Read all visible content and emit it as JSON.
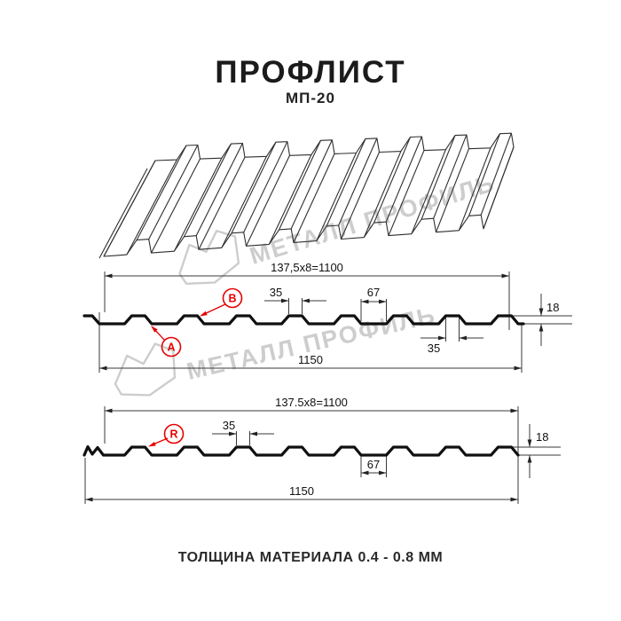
{
  "header": {
    "title": "ПРОФЛИСТ",
    "subtitle": "МП-20"
  },
  "footer": {
    "text": "ТОЛЩИНА МАТЕРИАЛА 0.4 - 0.8 ММ"
  },
  "watermark": {
    "text": "МЕТАЛЛ ПРОФИЛЬ",
    "logo": "metall-profil-roof-logo"
  },
  "colors": {
    "accent_red": "#e60000",
    "line_black": "#101010",
    "watermark_gray": "#cdcdcd"
  },
  "profile_top": {
    "dim_width_formula": "137,5x8=1100",
    "dim_total_width": "1150",
    "dim_rib_top_width": "35",
    "dim_valley_width": "67",
    "dim_height": "18",
    "dim_rib_bottom_width": "35",
    "marker_a": "A",
    "marker_b": "B"
  },
  "profile_bottom": {
    "dim_width_formula": "137.5x8=1100",
    "dim_total_width": "1150",
    "dim_rib_top_width": "35",
    "dim_valley_width": "67",
    "dim_height": "18",
    "marker_r": "R"
  }
}
